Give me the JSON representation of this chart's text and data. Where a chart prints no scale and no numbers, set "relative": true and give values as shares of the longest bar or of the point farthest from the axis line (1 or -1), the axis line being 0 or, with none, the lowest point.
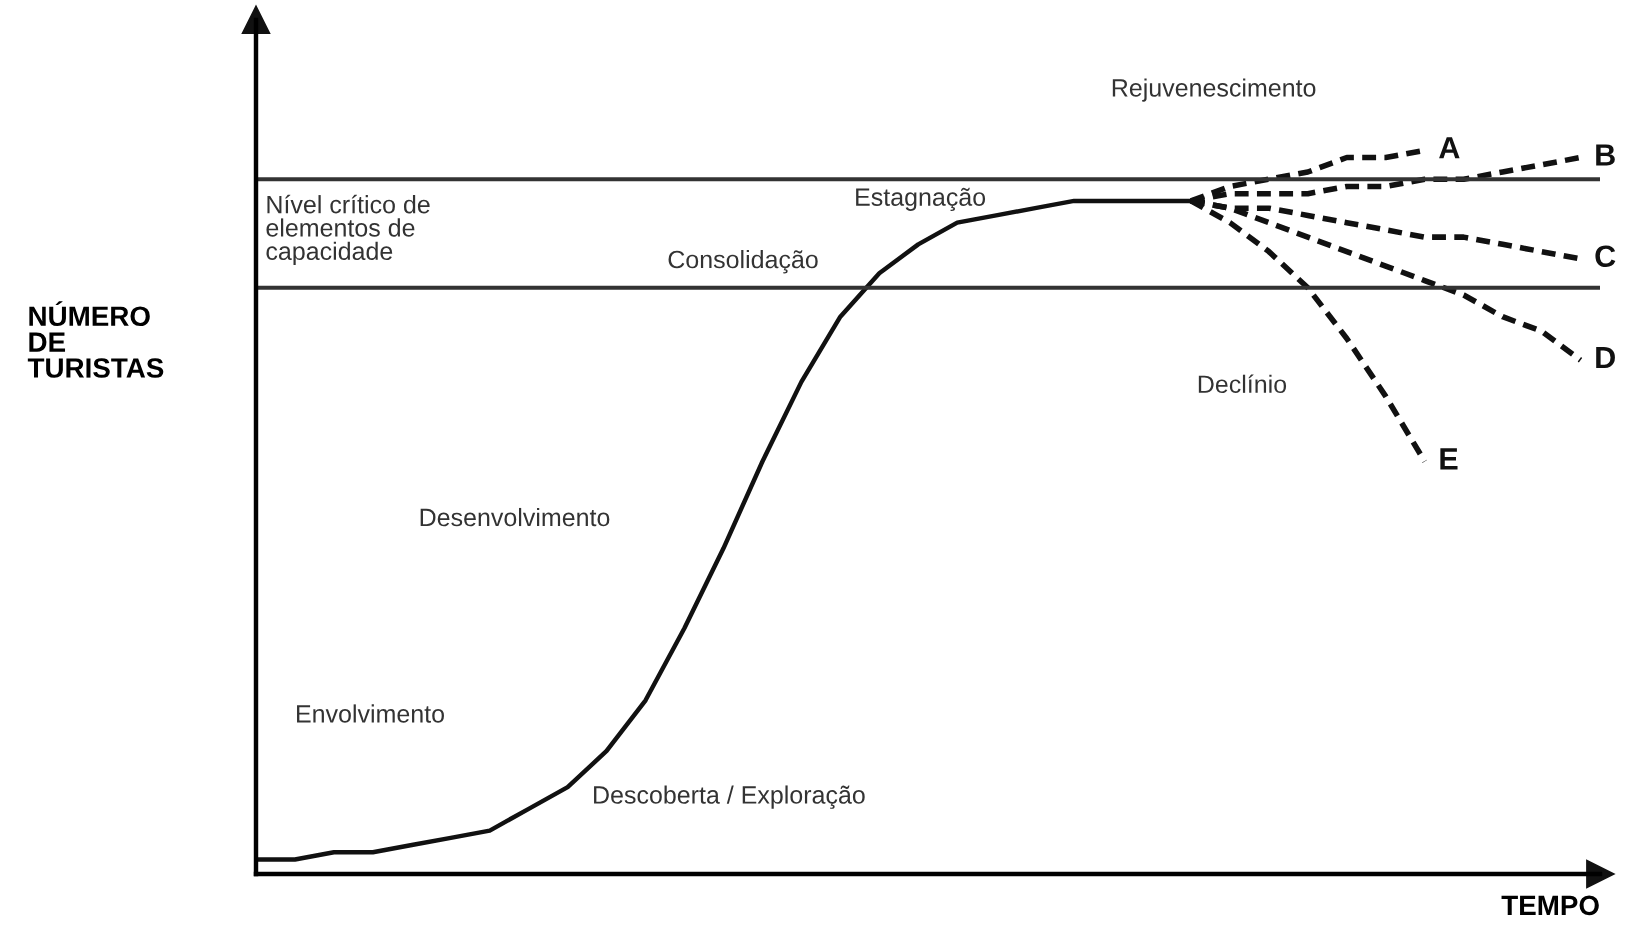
{
  "chart_data": {
    "type": "line",
    "relative": true,
    "xlabel": "TEMPO",
    "ylabel": "NÚMERO\nDE\nTURISTAS",
    "categories": [
      null,
      null,
      null,
      null,
      null,
      null,
      null,
      null,
      null,
      null,
      null,
      null,
      null,
      null,
      null,
      null,
      null,
      null,
      null,
      null,
      null,
      null,
      null,
      null,
      null,
      null,
      null,
      null,
      null,
      null,
      null,
      null,
      null,
      null,
      null
    ],
    "series": [
      {
        "color": "#111111",
        "line_style": "solid",
        "values": [
          0.02,
          0.02,
          0.03,
          0.03,
          0.04,
          0.05,
          0.06,
          0.09,
          0.12,
          0.17,
          0.24,
          0.34,
          0.45,
          0.57,
          0.68,
          0.77,
          0.83,
          0.87,
          0.9,
          0.91,
          0.92,
          0.93,
          0.93,
          0.93,
          0.93,
          null,
          null,
          null,
          null,
          null,
          null,
          null,
          null,
          null,
          null
        ]
      },
      {
        "name": "A",
        "color": "#111111",
        "line_style": "dashed",
        "values": [
          null,
          null,
          null,
          null,
          null,
          null,
          null,
          null,
          null,
          null,
          null,
          null,
          null,
          null,
          null,
          null,
          null,
          null,
          null,
          null,
          null,
          null,
          null,
          null,
          0.93,
          0.95,
          0.96,
          0.97,
          0.99,
          0.99,
          1.0,
          null,
          null,
          null,
          null
        ]
      },
      {
        "name": "B",
        "color": "#111111",
        "line_style": "dashed",
        "values": [
          null,
          null,
          null,
          null,
          null,
          null,
          null,
          null,
          null,
          null,
          null,
          null,
          null,
          null,
          null,
          null,
          null,
          null,
          null,
          null,
          null,
          null,
          null,
          null,
          0.93,
          0.94,
          0.94,
          0.94,
          0.95,
          0.95,
          0.96,
          0.96,
          0.97,
          0.98,
          0.99
        ]
      },
      {
        "name": "C",
        "color": "#111111",
        "line_style": "dashed",
        "values": [
          null,
          null,
          null,
          null,
          null,
          null,
          null,
          null,
          null,
          null,
          null,
          null,
          null,
          null,
          null,
          null,
          null,
          null,
          null,
          null,
          null,
          null,
          null,
          null,
          0.93,
          0.92,
          0.92,
          0.91,
          0.9,
          0.89,
          0.88,
          0.88,
          0.87,
          0.86,
          0.85
        ]
      },
      {
        "name": "D",
        "color": "#111111",
        "line_style": "dashed",
        "values": [
          null,
          null,
          null,
          null,
          null,
          null,
          null,
          null,
          null,
          null,
          null,
          null,
          null,
          null,
          null,
          null,
          null,
          null,
          null,
          null,
          null,
          null,
          null,
          null,
          0.93,
          0.92,
          0.9,
          0.88,
          0.86,
          0.84,
          0.82,
          0.8,
          0.77,
          0.75,
          0.71
        ]
      },
      {
        "name": "E",
        "color": "#111111",
        "line_style": "dashed",
        "values": [
          null,
          null,
          null,
          null,
          null,
          null,
          null,
          null,
          null,
          null,
          null,
          null,
          null,
          null,
          null,
          null,
          null,
          null,
          null,
          null,
          null,
          null,
          null,
          null,
          0.93,
          0.9,
          0.86,
          0.81,
          0.74,
          0.66,
          0.57,
          null,
          null,
          null,
          null
        ]
      }
    ],
    "ref_lines": [
      {
        "axis": "y",
        "value": 0.96,
        "color": "#333333"
      },
      {
        "axis": "y",
        "value": 0.81,
        "color": "#333333"
      }
    ],
    "annotations": [
      "Nível crítico de\nelementos de\ncapacidade",
      "Rejuvenescimento",
      "Estagnação",
      "Consolidação",
      "Declínio",
      "Desenvolvimento",
      "Envolvimento",
      "Descoberta / Exploração"
    ],
    "grid": false,
    "legend": false,
    "marker": "none"
  }
}
